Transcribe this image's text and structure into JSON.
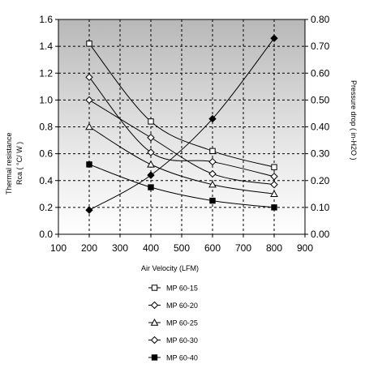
{
  "chart_data": {
    "type": "line",
    "title": "",
    "xlabel": "Air Velocity (LFM)",
    "ylabel_left_line1": "Thermal resistance",
    "ylabel_left_line2": "Rca ( °C/ W )",
    "ylabel_right": "Pressure drop ( in-H2O )",
    "xlim": [
      100,
      900
    ],
    "xticks": [
      100,
      200,
      300,
      400,
      500,
      600,
      700,
      800,
      900
    ],
    "ylim_left": [
      0.0,
      1.6
    ],
    "yticks_left": [
      "0.0",
      "0.2",
      "0.4",
      "0.6",
      "0.8",
      "1.0",
      "1.2",
      "1.4",
      "1.6"
    ],
    "ylim_right": [
      0.0,
      0.8
    ],
    "yticks_right": [
      "0.00",
      "0.10",
      "0.20",
      "0.30",
      "0.40",
      "0.50",
      "0.60",
      "0.70",
      "0.80"
    ],
    "grid": true,
    "legend_position": "bottom",
    "x": [
      200,
      400,
      600,
      800
    ],
    "series": [
      {
        "name": "MP 60-15",
        "marker": "square-open",
        "axis": "left",
        "values": [
          1.42,
          0.84,
          0.62,
          0.5
        ]
      },
      {
        "name": "MP 60-20",
        "marker": "diamond-open",
        "axis": "left",
        "values": [
          1.17,
          0.61,
          0.54,
          0.43
        ]
      },
      {
        "name": "MP 60-25",
        "marker": "triangle-open",
        "axis": "left",
        "values": [
          0.8,
          0.52,
          0.37,
          0.3
        ]
      },
      {
        "name": "MP 60-30",
        "marker": "diamond-open",
        "axis": "left",
        "values": [
          1.0,
          0.72,
          0.45,
          0.37
        ]
      },
      {
        "name": "MP 60-40",
        "marker": "square-filled",
        "axis": "left",
        "values": [
          0.52,
          0.35,
          0.25,
          0.2
        ]
      }
    ],
    "pressure_series": {
      "marker": "diamond-filled",
      "axis": "right",
      "values": [
        0.09,
        0.22,
        0.43,
        0.73
      ]
    }
  }
}
